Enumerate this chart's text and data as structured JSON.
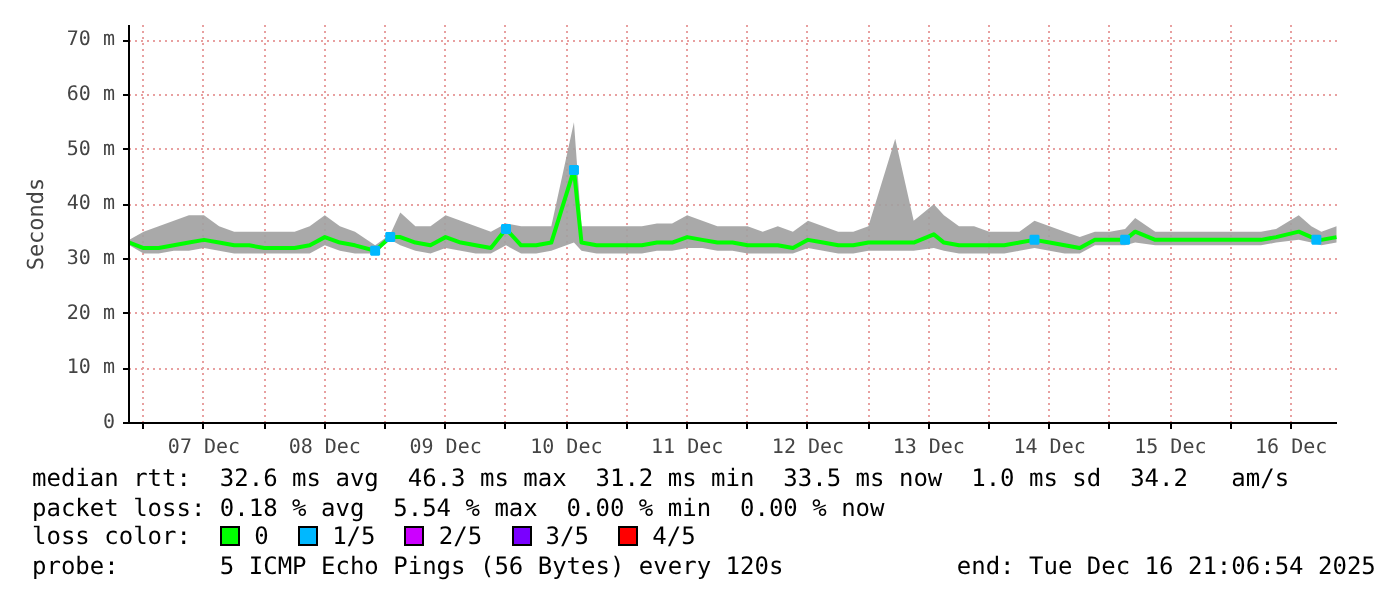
{
  "chart_data": {
    "type": "line",
    "ylabel": "Seconds",
    "legend_title": "loss color:",
    "legend": "bottom",
    "grid": true,
    "xlim": [
      "2025-12-06T21:06",
      "2025-12-16T21:06"
    ],
    "xticks": [
      {
        "value": "2025-12-07T00:00",
        "label": null
      },
      {
        "value": "2025-12-07T12:00",
        "label": "07 Dec"
      },
      {
        "value": "2025-12-08T00:00",
        "label": null
      },
      {
        "value": "2025-12-08T12:00",
        "label": "08 Dec"
      },
      {
        "value": "2025-12-09T00:00",
        "label": null
      },
      {
        "value": "2025-12-09T12:00",
        "label": "09 Dec"
      },
      {
        "value": "2025-12-10T00:00",
        "label": null
      },
      {
        "value": "2025-12-10T12:00",
        "label": "10 Dec"
      },
      {
        "value": "2025-12-11T00:00",
        "label": null
      },
      {
        "value": "2025-12-11T12:00",
        "label": "11 Dec"
      },
      {
        "value": "2025-12-12T00:00",
        "label": null
      },
      {
        "value": "2025-12-12T12:00",
        "label": "12 Dec"
      },
      {
        "value": "2025-12-13T00:00",
        "label": null
      },
      {
        "value": "2025-12-13T12:00",
        "label": "13 Dec"
      },
      {
        "value": "2025-12-14T00:00",
        "label": null
      },
      {
        "value": "2025-12-14T12:00",
        "label": "14 Dec"
      },
      {
        "value": "2025-12-15T00:00",
        "label": null
      },
      {
        "value": "2025-12-15T12:00",
        "label": "15 Dec"
      },
      {
        "value": "2025-12-16T00:00",
        "label": null
      },
      {
        "value": "2025-12-16T12:00",
        "label": "16 Dec"
      }
    ],
    "ylim": [
      0,
      72.8
    ],
    "yticks": [
      0,
      {
        "value": 10,
        "label": "10 m"
      },
      {
        "value": 20,
        "label": "20 m"
      },
      {
        "value": 30,
        "label": "30 m"
      },
      {
        "value": 40,
        "label": "40 m"
      },
      {
        "value": 50,
        "label": "50 m"
      },
      {
        "value": 60,
        "label": "60 m"
      },
      {
        "value": 70,
        "label": "70 m"
      }
    ],
    "x": [
      "2025-12-06T21:10",
      "2025-12-07T00:00",
      "2025-12-07T03:00",
      "2025-12-07T06:00",
      "2025-12-07T09:00",
      "2025-12-07T12:00",
      "2025-12-07T15:00",
      "2025-12-07T18:00",
      "2025-12-07T21:00",
      "2025-12-08T00:00",
      "2025-12-08T03:00",
      "2025-12-08T06:00",
      "2025-12-08T09:00",
      "2025-12-08T12:00",
      "2025-12-08T15:00",
      "2025-12-08T18:00",
      "2025-12-08T22:00",
      "2025-12-09T01:00",
      "2025-12-09T03:00",
      "2025-12-09T06:00",
      "2025-12-09T09:00",
      "2025-12-09T12:00",
      "2025-12-09T15:00",
      "2025-12-09T18:00",
      "2025-12-09T21:00",
      "2025-12-10T00:00",
      "2025-12-10T03:00",
      "2025-12-10T06:00",
      "2025-12-10T09:00",
      "2025-12-10T13:30",
      "2025-12-10T15:00",
      "2025-12-10T18:00",
      "2025-12-10T21:00",
      "2025-12-11T00:00",
      "2025-12-11T03:00",
      "2025-12-11T06:00",
      "2025-12-11T09:00",
      "2025-12-11T12:00",
      "2025-12-11T15:00",
      "2025-12-11T18:00",
      "2025-12-11T21:00",
      "2025-12-12T00:00",
      "2025-12-12T03:00",
      "2025-12-12T06:00",
      "2025-12-12T09:00",
      "2025-12-12T12:00",
      "2025-12-12T15:00",
      "2025-12-12T18:00",
      "2025-12-12T21:00",
      "2025-12-13T00:00",
      "2025-12-13T05:20",
      "2025-12-13T09:00",
      "2025-12-13T13:00",
      "2025-12-13T15:00",
      "2025-12-13T18:00",
      "2025-12-13T21:00",
      "2025-12-14T00:00",
      "2025-12-14T03:00",
      "2025-12-14T06:00",
      "2025-12-14T09:00",
      "2025-12-14T12:00",
      "2025-12-14T15:00",
      "2025-12-14T18:00",
      "2025-12-14T21:00",
      "2025-12-15T00:00",
      "2025-12-15T03:00",
      "2025-12-15T05:00",
      "2025-12-15T09:00",
      "2025-12-15T12:00",
      "2025-12-15T15:00",
      "2025-12-15T18:00",
      "2025-12-15T21:00",
      "2025-12-16T00:00",
      "2025-12-16T03:00",
      "2025-12-16T06:00",
      "2025-12-16T09:00",
      "2025-12-16T13:30",
      "2025-12-16T16:00",
      "2025-12-16T18:00",
      "2025-12-16T21:00"
    ],
    "series": [
      {
        "name": "0",
        "type": "line",
        "color": "#00ff00",
        "values": [
          33,
          32,
          32,
          32.5,
          33,
          33.5,
          33,
          32.5,
          32.5,
          32,
          32,
          32,
          32.5,
          34,
          33,
          32.5,
          31.5,
          34,
          34,
          33,
          32.5,
          34,
          33,
          32.5,
          32,
          35.5,
          32.5,
          32.5,
          33,
          46.3,
          33,
          32.5,
          32.5,
          32.5,
          32.5,
          33,
          33,
          34,
          33.5,
          33,
          33,
          32.5,
          32.5,
          32.5,
          32,
          33.5,
          33,
          32.5,
          32.5,
          33,
          33,
          33,
          34.5,
          33,
          32.5,
          32.5,
          32.5,
          32.5,
          33,
          33.5,
          33,
          32.5,
          32,
          33.5,
          33.5,
          33.5,
          35,
          33.5,
          33.5,
          33.5,
          33.5,
          33.5,
          33.5,
          33.5,
          33.5,
          34,
          35,
          34,
          33.5,
          34
        ],
        "lower": [
          32.5,
          31,
          31,
          31.5,
          31.5,
          32,
          31.5,
          31,
          31,
          31,
          31,
          31,
          31,
          32.5,
          31.5,
          31,
          31,
          33.5,
          32.5,
          31.5,
          31,
          32,
          31.5,
          31,
          31,
          32.5,
          31,
          31,
          31.5,
          33,
          31.5,
          31,
          31,
          31,
          31,
          31.5,
          31.5,
          32,
          32,
          31.5,
          31.5,
          31,
          31,
          31,
          31,
          32,
          31.5,
          31,
          31,
          31.5,
          31.5,
          31.5,
          32,
          31.5,
          31,
          31,
          31,
          31,
          31.5,
          32,
          31.5,
          31,
          31,
          32.5,
          32.5,
          32.5,
          33,
          32.5,
          32.5,
          32.5,
          32.5,
          32.5,
          32.5,
          32.5,
          32.5,
          33,
          33.5,
          33,
          32.5,
          33
        ],
        "upper": [
          33.5,
          35,
          36,
          37,
          38,
          38,
          36,
          35,
          35,
          35,
          35,
          35,
          36,
          38,
          36,
          35,
          32.5,
          34.5,
          38.5,
          36,
          36,
          38,
          37,
          36,
          35,
          36.5,
          36,
          36,
          36,
          55,
          36,
          36,
          36,
          36,
          36,
          36.5,
          36.5,
          38,
          37,
          36,
          36,
          36,
          35,
          36,
          35,
          37,
          36,
          35,
          35,
          36,
          52,
          37,
          40,
          38,
          36,
          36,
          35,
          35,
          35,
          37,
          36,
          35,
          34,
          35,
          35,
          35.5,
          37.5,
          35,
          35,
          35,
          35,
          35,
          35,
          35,
          35,
          35.5,
          38,
          36,
          35,
          36
        ]
      },
      {
        "name": "1/5",
        "type": "scatter",
        "marker": "square",
        "color": "#00b8ff",
        "x": [
          "2025-12-08T22:00",
          "2025-12-09T01:00",
          "2025-12-10T00:00",
          "2025-12-10T13:30",
          "2025-12-14T09:00",
          "2025-12-15T03:00",
          "2025-12-16T17:00"
        ],
        "values": [
          31.5,
          34,
          35.5,
          46.3,
          33.5,
          33.5,
          33.5
        ]
      },
      {
        "name": "2/5",
        "type": "scatter",
        "marker": "square",
        "color": "#cc00ff",
        "values": [
          null,
          null,
          null,
          null,
          null,
          null,
          null,
          null,
          null,
          null,
          null,
          null,
          null,
          null,
          null,
          null,
          null,
          null,
          null,
          null,
          null,
          null,
          null,
          null,
          null,
          null,
          null,
          null,
          null,
          null,
          null,
          null,
          null,
          null,
          null,
          null,
          null,
          null,
          null,
          null,
          null,
          null,
          null,
          null,
          null,
          null,
          null,
          null,
          null,
          null,
          null,
          null,
          null,
          null,
          null,
          null,
          null,
          null,
          null,
          null,
          null,
          null,
          null,
          null,
          null,
          null,
          null,
          null,
          null,
          null,
          null,
          null,
          null,
          null,
          null,
          null,
          null,
          null,
          null,
          null
        ]
      },
      {
        "name": "3/5",
        "type": "scatter",
        "marker": "square",
        "color": "#7a00ff",
        "values": [
          null,
          null,
          null,
          null,
          null,
          null,
          null,
          null,
          null,
          null,
          null,
          null,
          null,
          null,
          null,
          null,
          null,
          null,
          null,
          null,
          null,
          null,
          null,
          null,
          null,
          null,
          null,
          null,
          null,
          null,
          null,
          null,
          null,
          null,
          null,
          null,
          null,
          null,
          null,
          null,
          null,
          null,
          null,
          null,
          null,
          null,
          null,
          null,
          null,
          null,
          null,
          null,
          null,
          null,
          null,
          null,
          null,
          null,
          null,
          null,
          null,
          null,
          null,
          null,
          null,
          null,
          null,
          null,
          null,
          null,
          null,
          null,
          null,
          null,
          null,
          null,
          null,
          null,
          null,
          null
        ]
      },
      {
        "name": "4/5",
        "type": "scatter",
        "marker": "square",
        "color": "#ff0000",
        "values": [
          null,
          null,
          null,
          null,
          null,
          null,
          null,
          null,
          null,
          null,
          null,
          null,
          null,
          null,
          null,
          null,
          null,
          null,
          null,
          null,
          null,
          null,
          null,
          null,
          null,
          null,
          null,
          null,
          null,
          null,
          null,
          null,
          null,
          null,
          null,
          null,
          null,
          null,
          null,
          null,
          null,
          null,
          null,
          null,
          null,
          null,
          null,
          null,
          null,
          null,
          null,
          null,
          null,
          null,
          null,
          null,
          null,
          null,
          null,
          null,
          null,
          null,
          null,
          null,
          null,
          null,
          null,
          null,
          null,
          null,
          null,
          null,
          null,
          null,
          null,
          null,
          null,
          null,
          null,
          null
        ]
      }
    ],
    "annotations": [
      "median rtt:  32.6 ms avg  46.3 ms max  31.2 ms min  33.5 ms now  1.0 ms sd  34.2   am/s",
      "packet loss: 0.18 % avg  5.54 % max  0.00 % min  0.00 % now",
      "probe:       5 ICMP Echo Pings (56 Bytes) every 120s            end: Tue Dec 16 21:06:54 2025"
    ]
  }
}
